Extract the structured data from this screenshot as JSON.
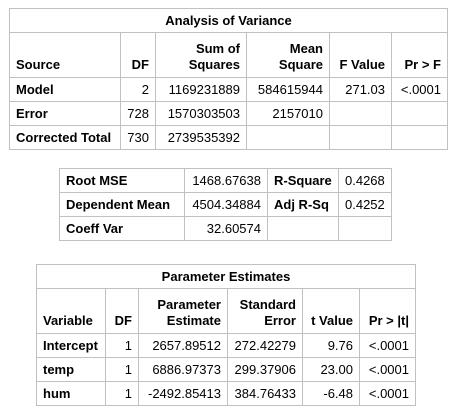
{
  "anova": {
    "title": "Analysis of Variance",
    "headers": {
      "source": "Source",
      "df": "DF",
      "ss": [
        "Sum of",
        "Squares"
      ],
      "ms": [
        "Mean",
        "Square"
      ],
      "fvalue": "F Value",
      "prf": "Pr > F"
    },
    "rows": [
      {
        "source": "Model",
        "df": "2",
        "ss": "1169231889",
        "ms": "584615944",
        "f": "271.03",
        "p": "<.0001"
      },
      {
        "source": "Error",
        "df": "728",
        "ss": "1570303503",
        "ms": "2157010",
        "f": "",
        "p": ""
      },
      {
        "source": "Corrected Total",
        "df": "730",
        "ss": "2739535392",
        "ms": "",
        "f": "",
        "p": ""
      }
    ]
  },
  "fit": {
    "rows": [
      {
        "label1": "Root MSE",
        "value1": "1468.67638",
        "label2": "R-Square",
        "value2": "0.4268"
      },
      {
        "label1": "Dependent Mean",
        "value1": "4504.34884",
        "label2": "Adj R-Sq",
        "value2": "0.4252"
      },
      {
        "label1": "Coeff Var",
        "value1": "32.60574",
        "label2": "",
        "value2": ""
      }
    ]
  },
  "params": {
    "title": "Parameter Estimates",
    "headers": {
      "variable": "Variable",
      "df": "DF",
      "estimate": [
        "Parameter",
        "Estimate"
      ],
      "stderr": [
        "Standard",
        "Error"
      ],
      "tvalue": "t Value",
      "prt": "Pr > |t|"
    },
    "rows": [
      {
        "variable": "Intercept",
        "df": "1",
        "estimate": "2657.89512",
        "stderr": "272.42279",
        "t": "9.76",
        "p": "<.0001"
      },
      {
        "variable": "temp",
        "df": "1",
        "estimate": "6886.97373",
        "stderr": "299.37906",
        "t": "23.00",
        "p": "<.0001"
      },
      {
        "variable": "hum",
        "df": "1",
        "estimate": "-2492.85413",
        "stderr": "384.76433",
        "t": "-6.48",
        "p": "<.0001"
      }
    ]
  }
}
